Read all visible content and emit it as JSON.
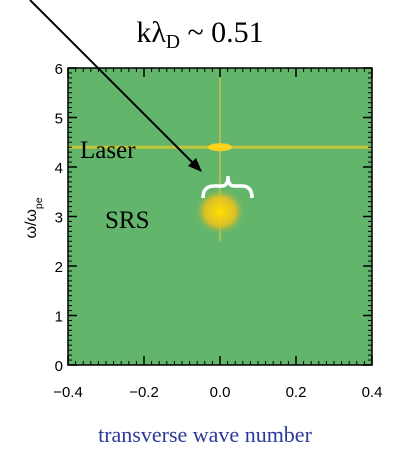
{
  "chart_data": {
    "type": "spectrum",
    "title": [
      "kλ",
      "D",
      " ~ 0.51"
    ],
    "x_label": "transverse wave number",
    "y_label": [
      "ω/ω",
      "pe"
    ],
    "xlim": [
      -0.4,
      0.4
    ],
    "ylim": [
      0,
      6
    ],
    "xticks": [
      {
        "value": -0.4,
        "label": "−0.4"
      },
      {
        "value": -0.2,
        "label": "−0.2"
      },
      {
        "value": 0,
        "label": "0.0"
      },
      0.2,
      0.4
    ],
    "yticks": [
      0,
      1,
      2,
      3,
      4,
      5,
      6
    ],
    "background_color": "#62b56b",
    "features": [
      {
        "label": "Laser",
        "x": 0,
        "y": 4.4,
        "color": "#ffd21e"
      },
      {
        "label": "SRS",
        "x": 0,
        "y": 3.1,
        "color": "#ffe000"
      }
    ]
  }
}
